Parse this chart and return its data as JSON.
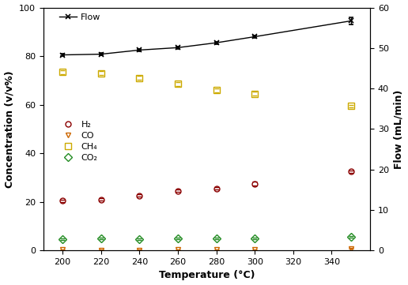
{
  "temperature": [
    200,
    220,
    240,
    260,
    280,
    300,
    350
  ],
  "H2": [
    20.5,
    21.0,
    22.5,
    24.5,
    25.5,
    27.5,
    32.5
  ],
  "H2_err": [
    0.5,
    0.5,
    0.5,
    0.5,
    0.5,
    0.8,
    0.5
  ],
  "CO": [
    0.3,
    0.2,
    0.2,
    0.3,
    0.3,
    0.3,
    0.8
  ],
  "CO_err": [
    0.1,
    0.1,
    0.1,
    0.1,
    0.1,
    0.1,
    0.1
  ],
  "CH4": [
    73.5,
    73.0,
    71.0,
    68.5,
    66.0,
    64.5,
    59.5
  ],
  "CH4_err": [
    0.8,
    0.8,
    0.8,
    0.8,
    0.8,
    0.8,
    0.5
  ],
  "CO2": [
    4.5,
    5.0,
    4.5,
    5.0,
    5.0,
    5.0,
    5.5
  ],
  "CO2_err": [
    0.3,
    0.3,
    0.3,
    0.3,
    0.3,
    0.3,
    0.3
  ],
  "Flow": [
    80.5,
    80.8,
    82.5,
    83.5,
    85.5,
    88.0,
    94.5
  ],
  "Flow_err": [
    0.5,
    0.5,
    0.5,
    0.5,
    0.5,
    0.5,
    1.5
  ],
  "xlim": [
    190,
    360
  ],
  "ylim_left": [
    0,
    100
  ],
  "ylim_right": [
    0,
    60
  ],
  "xticks": [
    200,
    220,
    240,
    260,
    280,
    300,
    320,
    340
  ],
  "yticks_left": [
    0,
    20,
    40,
    60,
    80,
    100
  ],
  "yticks_right": [
    0,
    10,
    20,
    30,
    40,
    50,
    60
  ],
  "xlabel": "Temperature (°C)",
  "ylabel_left": "Concentration (v/v%)",
  "ylabel_right": "Flow (mL/min)",
  "legend_flow": "Flow",
  "legend_H2": "H₂",
  "legend_CO": "CO",
  "legend_CH4": "CH₄",
  "legend_CO2": "CO₂",
  "color_H2": "#8B0000",
  "color_CO": "#CC6600",
  "color_CH4": "#CCAA00",
  "color_CO2": "#228B22",
  "color_Flow": "black",
  "bg_color": "white"
}
